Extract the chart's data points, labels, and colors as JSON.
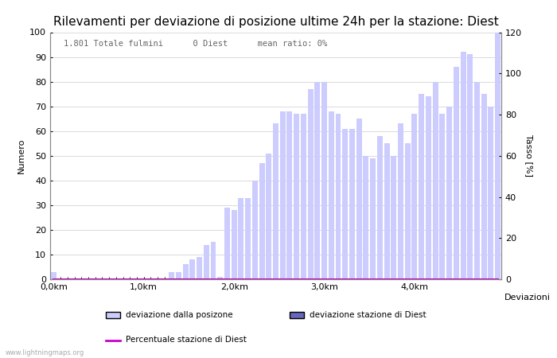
{
  "title": "Rilevamenti per deviazione di posizione ultime 24h per la stazione: Diest",
  "subtitle": "1.801 Totale fulmini      0 Diest      mean ratio: 0%",
  "xlabel": "Deviazioni",
  "ylabel_left": "Numero",
  "ylabel_right": "Tasso [%]",
  "watermark": "www.lightningmaps.org",
  "bar_values": [
    3,
    0,
    0,
    0,
    0,
    0,
    0,
    0,
    0,
    0,
    0,
    0,
    0,
    0,
    0,
    0,
    0,
    3,
    3,
    6,
    8,
    9,
    14,
    15,
    1,
    29,
    28,
    33,
    33,
    40,
    47,
    51,
    63,
    68,
    68,
    67,
    67,
    77,
    80,
    80,
    68,
    67,
    61,
    61,
    65,
    50,
    49,
    58,
    55,
    50,
    63,
    55,
    67,
    75,
    74,
    80,
    67,
    70,
    86,
    92,
    91,
    80,
    75,
    70,
    100
  ],
  "diest_values": [
    0,
    0,
    0,
    0,
    0,
    0,
    0,
    0,
    0,
    0,
    0,
    0,
    0,
    0,
    0,
    0,
    0,
    0,
    0,
    0,
    0,
    0,
    0,
    0,
    0,
    0,
    0,
    0,
    0,
    0,
    0,
    0,
    0,
    0,
    0,
    0,
    0,
    0,
    0,
    0,
    0,
    0,
    0,
    0,
    0,
    0,
    0,
    0,
    0,
    0,
    0,
    0,
    0,
    0,
    0,
    0,
    0,
    0,
    0,
    0,
    0,
    0,
    0,
    0,
    0
  ],
  "bar_color": "#ccccff",
  "diest_color": "#6666bb",
  "line_color": "#cc00cc",
  "xtick_positions": [
    0,
    13,
    26,
    39,
    52
  ],
  "xtick_labels": [
    "0,0km",
    "1,0km",
    "2,0km",
    "3,0km",
    "4,0km"
  ],
  "ylim_left": [
    0,
    100
  ],
  "ylim_right": [
    0,
    120
  ],
  "yticks_left": [
    0,
    10,
    20,
    30,
    40,
    50,
    60,
    70,
    80,
    90,
    100
  ],
  "yticks_right": [
    0,
    20,
    40,
    60,
    80,
    100,
    120
  ],
  "n_bars": 65,
  "legend_label1": "deviazione dalla posizone",
  "legend_label2": "deviazione stazione di Diest",
  "legend_label3": "Percentuale stazione di Diest",
  "background_color": "#ffffff",
  "grid_color": "#cccccc",
  "title_fontsize": 11,
  "label_fontsize": 8,
  "tick_fontsize": 8,
  "subtitle_fontsize": 7.5,
  "legend_fontsize": 7.5,
  "watermark_fontsize": 6
}
